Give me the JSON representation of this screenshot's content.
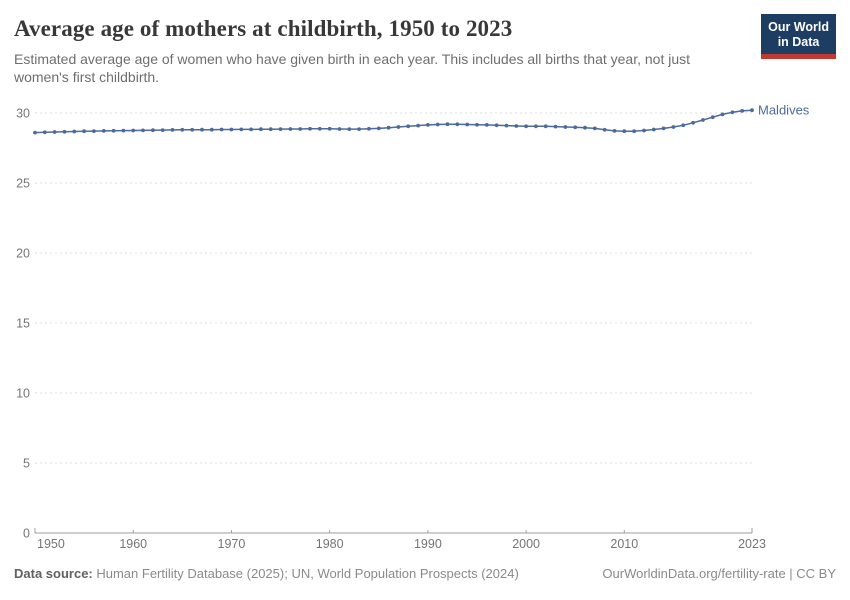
{
  "header": {
    "title": "Average age of mothers at childbirth, 1950 to 2023",
    "subtitle": "Estimated average age of women who have given birth in each year. This includes all births that year, not just women's first childbirth.",
    "logo": {
      "line1": "Our World",
      "line2": "in Data",
      "bg_color": "#1d3d63",
      "accent_color": "#c2392f"
    }
  },
  "chart_data": {
    "type": "line",
    "title": "Average age of mothers at childbirth, 1950 to 2023",
    "xlabel": "",
    "ylabel": "",
    "xlim": [
      1950,
      2023
    ],
    "ylim": [
      0,
      30.5
    ],
    "x_ticks": [
      1950,
      1960,
      1970,
      1980,
      1990,
      2000,
      2010,
      2023
    ],
    "y_ticks": [
      0,
      5,
      10,
      15,
      20,
      25,
      30
    ],
    "grid": "horizontal-dashed",
    "legend": "end-of-line-label",
    "colors": {
      "series": "#4c6a9c",
      "grid": "#dedede",
      "axis": "#9e9e9e",
      "tick_text": "#757575"
    },
    "series": [
      {
        "name": "Maldives",
        "color": "#4c6a9c",
        "x": [
          1950,
          1951,
          1952,
          1953,
          1954,
          1955,
          1956,
          1957,
          1958,
          1959,
          1960,
          1961,
          1962,
          1963,
          1964,
          1965,
          1966,
          1967,
          1968,
          1969,
          1970,
          1971,
          1972,
          1973,
          1974,
          1975,
          1976,
          1977,
          1978,
          1979,
          1980,
          1981,
          1982,
          1983,
          1984,
          1985,
          1986,
          1987,
          1988,
          1989,
          1990,
          1991,
          1992,
          1993,
          1994,
          1995,
          1996,
          1997,
          1998,
          1999,
          2000,
          2001,
          2002,
          2003,
          2004,
          2005,
          2006,
          2007,
          2008,
          2009,
          2010,
          2011,
          2012,
          2013,
          2014,
          2015,
          2016,
          2017,
          2018,
          2019,
          2020,
          2021,
          2022,
          2023
        ],
        "values": [
          28.6,
          28.62,
          28.64,
          28.66,
          28.68,
          28.7,
          28.71,
          28.72,
          28.73,
          28.74,
          28.75,
          28.76,
          28.77,
          28.78,
          28.79,
          28.8,
          28.8,
          28.81,
          28.81,
          28.82,
          28.82,
          28.83,
          28.83,
          28.84,
          28.84,
          28.85,
          28.86,
          28.86,
          28.87,
          28.87,
          28.87,
          28.86,
          28.85,
          28.85,
          28.87,
          28.9,
          28.95,
          29.0,
          29.05,
          29.1,
          29.15,
          29.18,
          29.2,
          29.19,
          29.18,
          29.16,
          29.15,
          29.12,
          29.1,
          29.07,
          29.05,
          29.05,
          29.05,
          29.03,
          29.0,
          28.98,
          28.95,
          28.9,
          28.8,
          28.72,
          28.7,
          28.7,
          28.75,
          28.82,
          28.9,
          29.0,
          29.12,
          29.3,
          29.5,
          29.7,
          29.9,
          30.05,
          30.15,
          30.2
        ]
      }
    ]
  },
  "footer": {
    "source_label": "Data source:",
    "source_text": " Human Fertility Database (2025); UN, World Population Prospects (2024)",
    "link_text": "OurWorldinData.org/fertility-rate | CC BY"
  }
}
